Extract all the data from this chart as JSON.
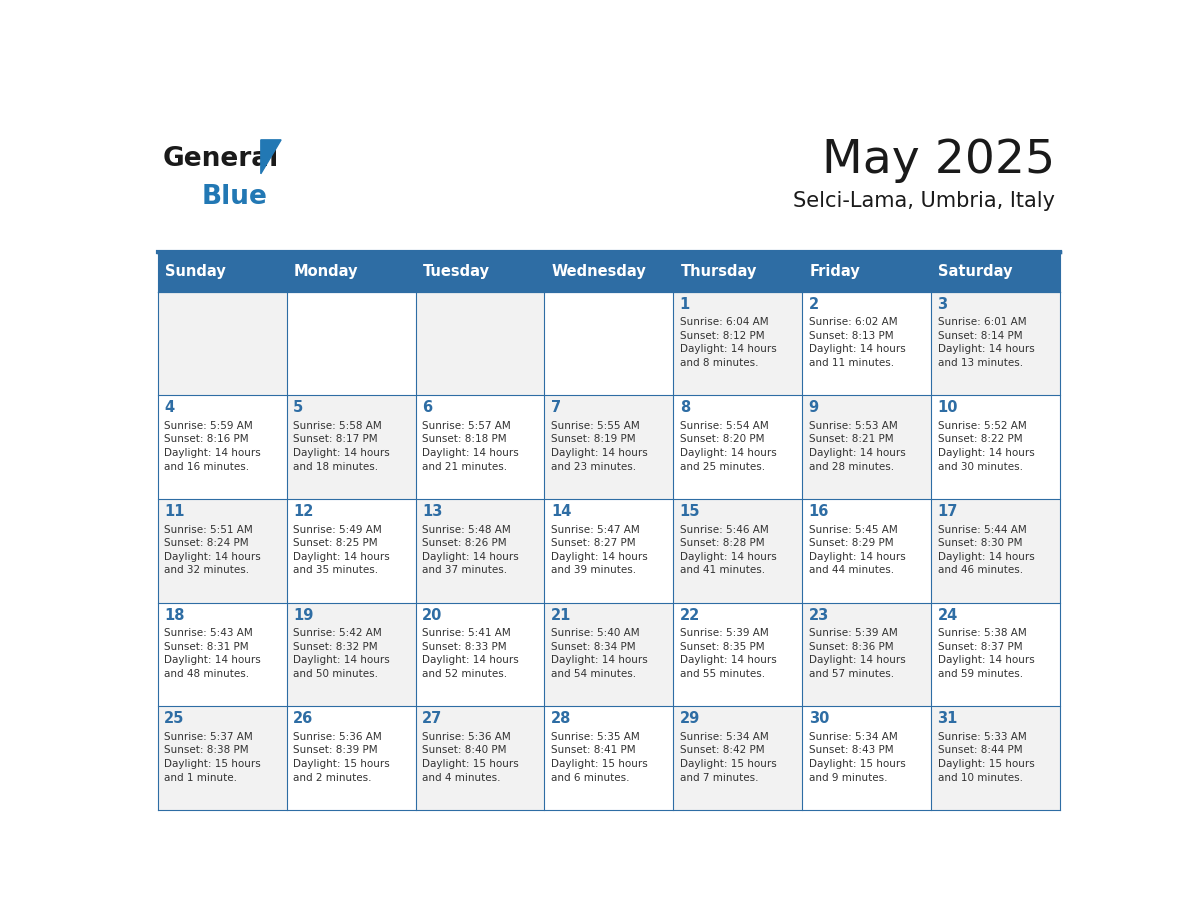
{
  "title": "May 2025",
  "subtitle": "Selci-Lama, Umbria, Italy",
  "days_of_week": [
    "Sunday",
    "Monday",
    "Tuesday",
    "Wednesday",
    "Thursday",
    "Friday",
    "Saturday"
  ],
  "header_bg": "#2E6DA4",
  "header_text": "#FFFFFF",
  "cell_bg_even": "#F2F2F2",
  "cell_bg_odd": "#FFFFFF",
  "border_color": "#2E6DA4",
  "text_color": "#333333",
  "day_number_color": "#2E6DA4",
  "logo_text_color": "#1a1a1a",
  "logo_blue_color": "#2278B4",
  "title_color": "#1a1a1a",
  "weeks": [
    [
      {
        "day": null,
        "info": ""
      },
      {
        "day": null,
        "info": ""
      },
      {
        "day": null,
        "info": ""
      },
      {
        "day": null,
        "info": ""
      },
      {
        "day": 1,
        "info": "Sunrise: 6:04 AM\nSunset: 8:12 PM\nDaylight: 14 hours\nand 8 minutes."
      },
      {
        "day": 2,
        "info": "Sunrise: 6:02 AM\nSunset: 8:13 PM\nDaylight: 14 hours\nand 11 minutes."
      },
      {
        "day": 3,
        "info": "Sunrise: 6:01 AM\nSunset: 8:14 PM\nDaylight: 14 hours\nand 13 minutes."
      }
    ],
    [
      {
        "day": 4,
        "info": "Sunrise: 5:59 AM\nSunset: 8:16 PM\nDaylight: 14 hours\nand 16 minutes."
      },
      {
        "day": 5,
        "info": "Sunrise: 5:58 AM\nSunset: 8:17 PM\nDaylight: 14 hours\nand 18 minutes."
      },
      {
        "day": 6,
        "info": "Sunrise: 5:57 AM\nSunset: 8:18 PM\nDaylight: 14 hours\nand 21 minutes."
      },
      {
        "day": 7,
        "info": "Sunrise: 5:55 AM\nSunset: 8:19 PM\nDaylight: 14 hours\nand 23 minutes."
      },
      {
        "day": 8,
        "info": "Sunrise: 5:54 AM\nSunset: 8:20 PM\nDaylight: 14 hours\nand 25 minutes."
      },
      {
        "day": 9,
        "info": "Sunrise: 5:53 AM\nSunset: 8:21 PM\nDaylight: 14 hours\nand 28 minutes."
      },
      {
        "day": 10,
        "info": "Sunrise: 5:52 AM\nSunset: 8:22 PM\nDaylight: 14 hours\nand 30 minutes."
      }
    ],
    [
      {
        "day": 11,
        "info": "Sunrise: 5:51 AM\nSunset: 8:24 PM\nDaylight: 14 hours\nand 32 minutes."
      },
      {
        "day": 12,
        "info": "Sunrise: 5:49 AM\nSunset: 8:25 PM\nDaylight: 14 hours\nand 35 minutes."
      },
      {
        "day": 13,
        "info": "Sunrise: 5:48 AM\nSunset: 8:26 PM\nDaylight: 14 hours\nand 37 minutes."
      },
      {
        "day": 14,
        "info": "Sunrise: 5:47 AM\nSunset: 8:27 PM\nDaylight: 14 hours\nand 39 minutes."
      },
      {
        "day": 15,
        "info": "Sunrise: 5:46 AM\nSunset: 8:28 PM\nDaylight: 14 hours\nand 41 minutes."
      },
      {
        "day": 16,
        "info": "Sunrise: 5:45 AM\nSunset: 8:29 PM\nDaylight: 14 hours\nand 44 minutes."
      },
      {
        "day": 17,
        "info": "Sunrise: 5:44 AM\nSunset: 8:30 PM\nDaylight: 14 hours\nand 46 minutes."
      }
    ],
    [
      {
        "day": 18,
        "info": "Sunrise: 5:43 AM\nSunset: 8:31 PM\nDaylight: 14 hours\nand 48 minutes."
      },
      {
        "day": 19,
        "info": "Sunrise: 5:42 AM\nSunset: 8:32 PM\nDaylight: 14 hours\nand 50 minutes."
      },
      {
        "day": 20,
        "info": "Sunrise: 5:41 AM\nSunset: 8:33 PM\nDaylight: 14 hours\nand 52 minutes."
      },
      {
        "day": 21,
        "info": "Sunrise: 5:40 AM\nSunset: 8:34 PM\nDaylight: 14 hours\nand 54 minutes."
      },
      {
        "day": 22,
        "info": "Sunrise: 5:39 AM\nSunset: 8:35 PM\nDaylight: 14 hours\nand 55 minutes."
      },
      {
        "day": 23,
        "info": "Sunrise: 5:39 AM\nSunset: 8:36 PM\nDaylight: 14 hours\nand 57 minutes."
      },
      {
        "day": 24,
        "info": "Sunrise: 5:38 AM\nSunset: 8:37 PM\nDaylight: 14 hours\nand 59 minutes."
      }
    ],
    [
      {
        "day": 25,
        "info": "Sunrise: 5:37 AM\nSunset: 8:38 PM\nDaylight: 15 hours\nand 1 minute."
      },
      {
        "day": 26,
        "info": "Sunrise: 5:36 AM\nSunset: 8:39 PM\nDaylight: 15 hours\nand 2 minutes."
      },
      {
        "day": 27,
        "info": "Sunrise: 5:36 AM\nSunset: 8:40 PM\nDaylight: 15 hours\nand 4 minutes."
      },
      {
        "day": 28,
        "info": "Sunrise: 5:35 AM\nSunset: 8:41 PM\nDaylight: 15 hours\nand 6 minutes."
      },
      {
        "day": 29,
        "info": "Sunrise: 5:34 AM\nSunset: 8:42 PM\nDaylight: 15 hours\nand 7 minutes."
      },
      {
        "day": 30,
        "info": "Sunrise: 5:34 AM\nSunset: 8:43 PM\nDaylight: 15 hours\nand 9 minutes."
      },
      {
        "day": 31,
        "info": "Sunrise: 5:33 AM\nSunset: 8:44 PM\nDaylight: 15 hours\nand 10 minutes."
      }
    ]
  ]
}
